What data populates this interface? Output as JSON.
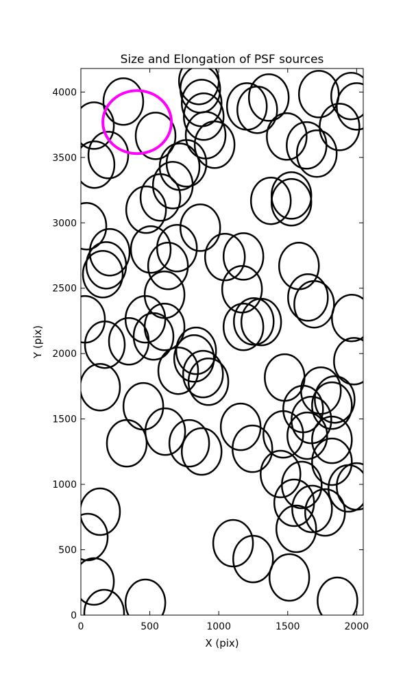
{
  "chart_data": {
    "type": "ellipses",
    "title": "Size and Elongation of PSF sources",
    "x_label": "X (pix)",
    "y_label": "Y (pix)",
    "xlim": [
      0,
      2048
    ],
    "ylim": [
      0,
      4180
    ],
    "xticks": [
      0,
      500,
      1000,
      1500,
      2000
    ],
    "yticks": [
      0,
      500,
      1000,
      1500,
      2000,
      2500,
      3000,
      3500,
      4000
    ],
    "series": [
      {
        "color": "#000000",
        "x": [
          308,
          95,
          199,
          99,
          542,
          856,
          866,
          876,
          891,
          905,
          970,
          1204,
          1279,
          1363,
          1493,
          1637,
          1711,
          1726,
          1876,
          1960,
          2000,
          766,
          716,
          667,
          577,
          473,
          40,
          866,
          1378,
          1527,
          1527,
          209,
          184,
          159,
          507,
          697,
          632,
          1045,
          1179,
          1582,
          1169,
          1647,
          1692,
          607,
          30,
          468,
          607,
          527,
          348,
          174,
          836,
          821,
          706,
          886,
          925,
          1179,
          1254,
          1308,
          1965,
          1980,
          139,
          453,
          1741,
          1841,
          1612,
          1821,
          1478,
          1672,
          612,
          333,
          786,
          876,
          1159,
          1244,
          1468,
          1642,
          1821,
          1821,
          1448,
          1602,
          1940,
          2000,
          1547,
          1677,
          1771,
          139,
          50,
          1562,
          1104,
          1249,
          1512,
          95,
          169,
          468,
          1861
        ],
        "values": [
          3927,
          3743,
          3518,
          3445,
          3665,
          4084,
          4021,
          3916,
          3812,
          3670,
          3597,
          3890,
          3864,
          3958,
          3660,
          3592,
          3529,
          3984,
          3733,
          3969,
          3890,
          3455,
          3429,
          3288,
          3194,
          3100,
          2974,
          2963,
          3168,
          3209,
          3157,
          2775,
          2675,
          2607,
          2796,
          2806,
          2670,
          2738,
          2743,
          2670,
          2492,
          2429,
          2377,
          2450,
          2262,
          2262,
          2204,
          2131,
          2094,
          2068,
          2021,
          1963,
          1869,
          1843,
          1785,
          2204,
          2246,
          2241,
          2272,
          1942,
          1743,
          1597,
          1717,
          1649,
          1576,
          1602,
          1817,
          1492,
          1403,
          1314,
          1314,
          1251,
          1440,
          1272,
          1382,
          1372,
          1340,
          1173,
          1079,
          995,
          969,
          984,
          859,
          812,
          785,
          791,
          597,
          660,
          550,
          429,
          288,
          257,
          16,
          94,
          110
        ]
      },
      {
        "color": "#ff00ff",
        "x": [
          408
        ],
        "values": [
          3770
        ]
      }
    ]
  }
}
